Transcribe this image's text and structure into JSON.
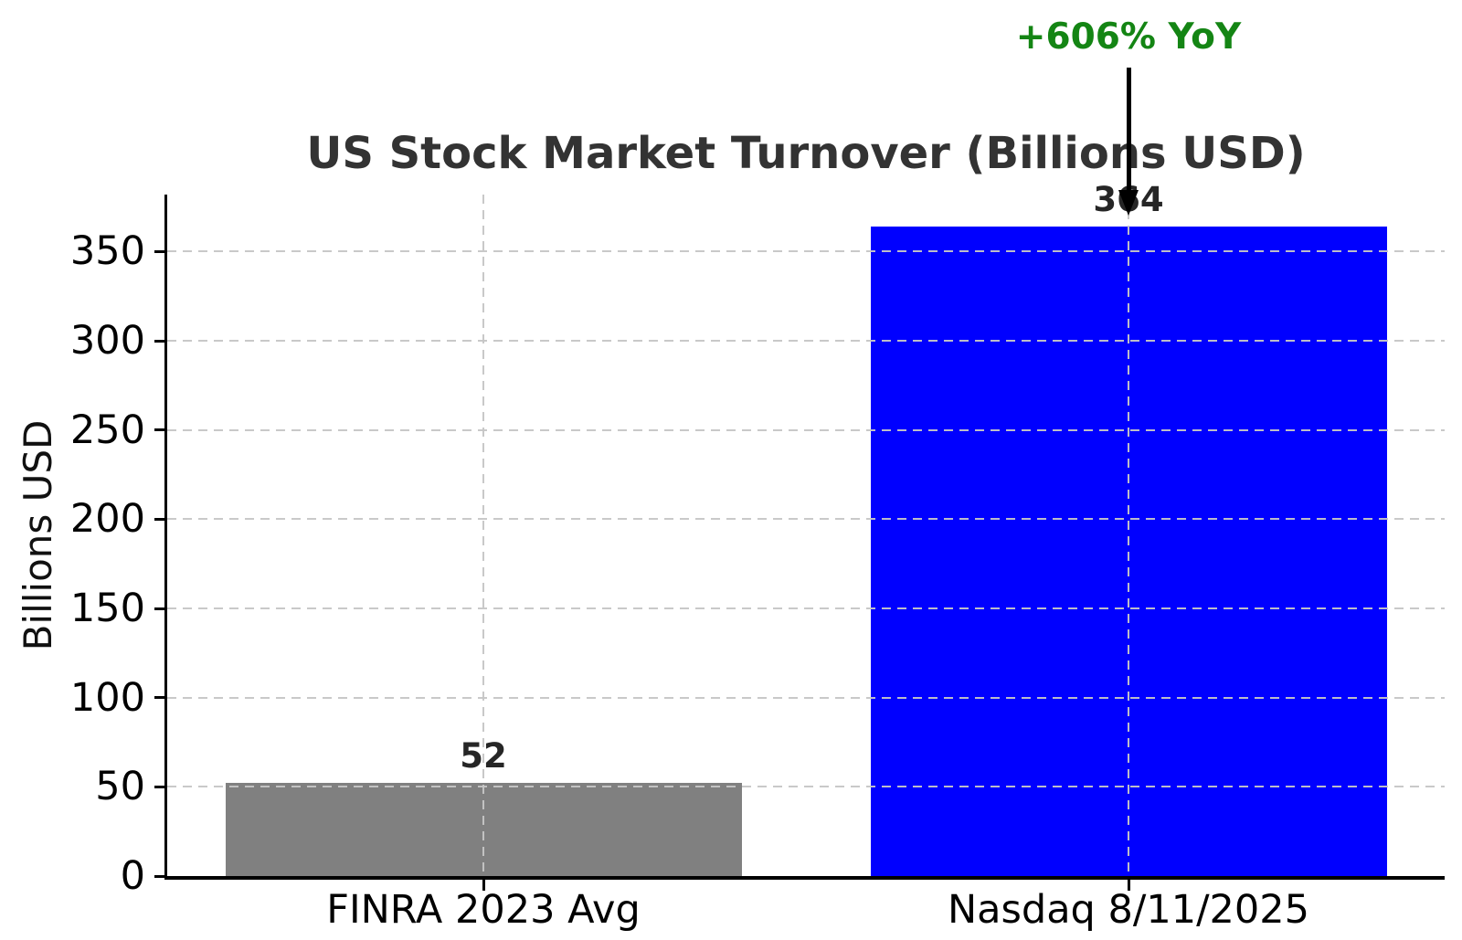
{
  "chart_data": {
    "type": "bar",
    "title": "US Stock Market Turnover (Billions USD)",
    "ylabel": "Billions USD",
    "xlabel": "",
    "categories": [
      "FINRA 2023 Avg",
      "Nasdaq 8/11/2025"
    ],
    "values": [
      52,
      364
    ],
    "value_labels": [
      "52",
      "364"
    ],
    "bar_colors": [
      "#808080",
      "#0000ff"
    ],
    "yticks": [
      0,
      50,
      100,
      150,
      200,
      250,
      300,
      350
    ],
    "ylim": [
      0,
      382
    ],
    "grid": {
      "visible": true,
      "style": "dashed",
      "color": "#c6c6c6",
      "above_bars": true,
      "horizontal_at_yticks": true,
      "vertical_at_category_centers": true
    },
    "legend": "none",
    "annotation": {
      "text": "+606% YoY",
      "color": "#148514",
      "arrow_color": "#000000",
      "points_to_category": "Nasdaq 8/11/2025"
    },
    "colors": {
      "title": "#333333",
      "tick_labels": "#000000",
      "value_labels": "#262626",
      "axis": "#000000",
      "background": "#ffffff"
    }
  }
}
